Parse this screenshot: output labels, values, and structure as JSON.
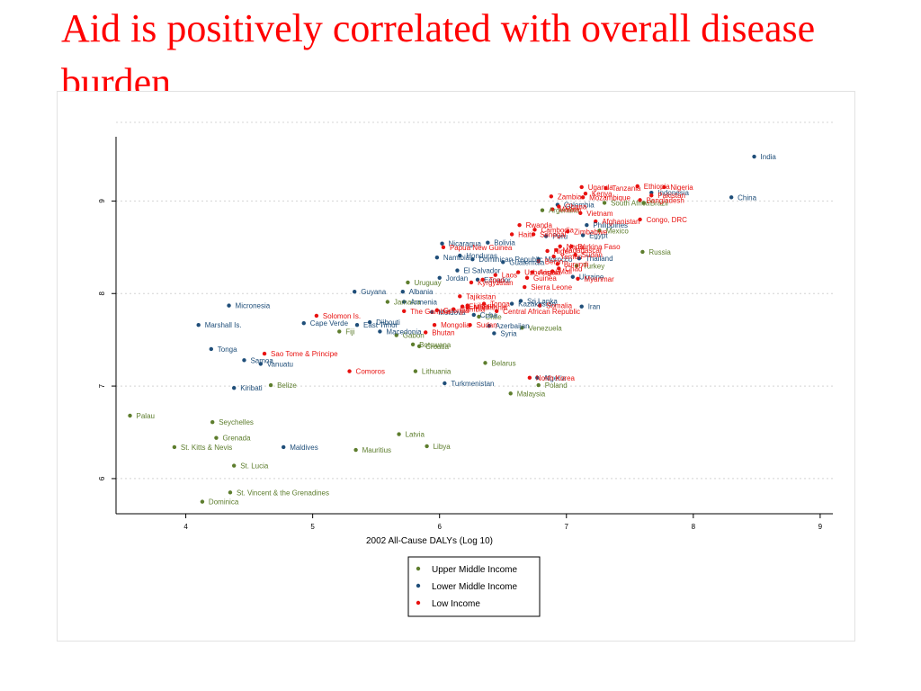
{
  "slide": {
    "title": "Aid is positively correlated with overall disease burden"
  },
  "chart_data": {
    "type": "scatter",
    "title": "",
    "xlabel": "2002 All-Cause DALYs (Log 10)",
    "ylabel": "",
    "xlim": [
      3.45,
      9.1
    ],
    "ylim": [
      5.62,
      9.85
    ],
    "xticks": [
      4,
      5,
      6,
      7,
      8,
      9
    ],
    "yticks": [
      6,
      7,
      8,
      9
    ],
    "grid": true,
    "legend_position": "bottom-center",
    "series": [
      {
        "name": "Upper Middle Income",
        "color": "#5d7d2d",
        "points": [
          {
            "label": "Palau",
            "x": 3.56,
            "y": 6.68
          },
          {
            "label": "Seychelles",
            "x": 4.21,
            "y": 6.61
          },
          {
            "label": "Grenada",
            "x": 4.24,
            "y": 6.44
          },
          {
            "label": "St. Kitts & Nevis",
            "x": 3.91,
            "y": 6.34
          },
          {
            "label": "St. Lucia",
            "x": 4.38,
            "y": 6.14
          },
          {
            "label": "St. Vincent & the Grenadines",
            "x": 4.35,
            "y": 5.85
          },
          {
            "label": "Dominica",
            "x": 4.13,
            "y": 5.75
          },
          {
            "label": "Belize",
            "x": 4.67,
            "y": 7.01
          },
          {
            "label": "Fiji",
            "x": 5.21,
            "y": 7.59
          },
          {
            "label": "Jamaica",
            "x": 5.59,
            "y": 7.91
          },
          {
            "label": "Uruguay",
            "x": 5.75,
            "y": 8.12
          },
          {
            "label": "Gabon",
            "x": 5.66,
            "y": 7.55
          },
          {
            "label": "Botswana",
            "x": 5.79,
            "y": 7.45
          },
          {
            "label": "Croatia",
            "x": 5.84,
            "y": 7.43
          },
          {
            "label": "Lithuania",
            "x": 5.81,
            "y": 7.16
          },
          {
            "label": "Latvia",
            "x": 5.68,
            "y": 6.48
          },
          {
            "label": "Libya",
            "x": 5.9,
            "y": 6.35
          },
          {
            "label": "Mauritius",
            "x": 5.34,
            "y": 6.31
          },
          {
            "label": "Belarus",
            "x": 6.36,
            "y": 7.25
          },
          {
            "label": "Malaysia",
            "x": 6.56,
            "y": 6.92
          },
          {
            "label": "Poland",
            "x": 6.78,
            "y": 7.01
          },
          {
            "label": "Chile",
            "x": 6.31,
            "y": 7.75
          },
          {
            "label": "Venezuela",
            "x": 6.65,
            "y": 7.63
          },
          {
            "label": "Russia",
            "x": 7.6,
            "y": 8.45
          },
          {
            "label": "South Africa",
            "x": 7.3,
            "y": 8.98
          },
          {
            "label": "Argentina",
            "x": 6.81,
            "y": 8.9
          },
          {
            "label": "Mexico",
            "x": 7.26,
            "y": 8.68
          },
          {
            "label": "Turkey",
            "x": 7.08,
            "y": 8.3
          },
          {
            "label": "Brazil",
            "x": 7.61,
            "y": 8.98
          }
        ]
      },
      {
        "name": "Lower Middle Income",
        "color": "#1f4e79",
        "points": [
          {
            "label": "India",
            "x": 8.48,
            "y": 9.48
          },
          {
            "label": "China",
            "x": 8.3,
            "y": 9.04
          },
          {
            "label": "Indonesia",
            "x": 7.67,
            "y": 9.09
          },
          {
            "label": "Philippines",
            "x": 7.16,
            "y": 8.74
          },
          {
            "label": "Egypt",
            "x": 7.13,
            "y": 8.63
          },
          {
            "label": "Colombia",
            "x": 6.93,
            "y": 8.96
          },
          {
            "label": "Iran",
            "x": 7.12,
            "y": 7.86
          },
          {
            "label": "Ukraine",
            "x": 7.05,
            "y": 8.18
          },
          {
            "label": "Thailand",
            "x": 7.1,
            "y": 8.38
          },
          {
            "label": "Peru",
            "x": 6.84,
            "y": 8.62
          },
          {
            "label": "Morocco",
            "x": 6.78,
            "y": 8.37
          },
          {
            "label": "Bolivia",
            "x": 6.38,
            "y": 8.55
          },
          {
            "label": "Nicaragua",
            "x": 6.02,
            "y": 8.54
          },
          {
            "label": "Honduras",
            "x": 6.16,
            "y": 8.41
          },
          {
            "label": "Namibia",
            "x": 5.98,
            "y": 8.39
          },
          {
            "label": "Dominican Republic",
            "x": 6.26,
            "y": 8.37
          },
          {
            "label": "El Salvador",
            "x": 6.14,
            "y": 8.25
          },
          {
            "label": "Guatemala",
            "x": 6.5,
            "y": 8.34
          },
          {
            "label": "Jordan",
            "x": 6.0,
            "y": 8.17
          },
          {
            "label": "Ecuador",
            "x": 6.3,
            "y": 8.15
          },
          {
            "label": "Sri Lanka",
            "x": 6.64,
            "y": 7.92
          },
          {
            "label": "Kazakhstan",
            "x": 6.57,
            "y": 7.89
          },
          {
            "label": "Algeria",
            "x": 6.77,
            "y": 7.09
          },
          {
            "label": "Turkmenistan",
            "x": 6.04,
            "y": 7.03
          },
          {
            "label": "Syria",
            "x": 6.43,
            "y": 7.57
          },
          {
            "label": "Azerbaijan",
            "x": 6.39,
            "y": 7.65
          },
          {
            "label": "Cuba",
            "x": 6.27,
            "y": 7.77
          },
          {
            "label": "Albania",
            "x": 5.71,
            "y": 8.02
          },
          {
            "label": "Guyana",
            "x": 5.33,
            "y": 8.02
          },
          {
            "label": "Armenia",
            "x": 5.72,
            "y": 7.91
          },
          {
            "label": "Macedonia",
            "x": 5.53,
            "y": 7.59
          },
          {
            "label": "East Timor",
            "x": 5.35,
            "y": 7.66
          },
          {
            "label": "Cape Verde",
            "x": 4.93,
            "y": 7.68
          },
          {
            "label": "Djibouti",
            "x": 5.45,
            "y": 7.69
          },
          {
            "label": "Micronesia",
            "x": 4.34,
            "y": 7.87
          },
          {
            "label": "Marshall Is.",
            "x": 4.1,
            "y": 7.66
          },
          {
            "label": "Tonga",
            "x": 4.2,
            "y": 7.4
          },
          {
            "label": "Samoa",
            "x": 4.46,
            "y": 7.28
          },
          {
            "label": "Vanuatu",
            "x": 4.59,
            "y": 7.24
          },
          {
            "label": "Kiribati",
            "x": 4.38,
            "y": 6.98
          },
          {
            "label": "Maldives",
            "x": 4.77,
            "y": 6.34
          },
          {
            "label": "Moldova",
            "x": 5.94,
            "y": 7.8
          }
        ]
      },
      {
        "name": "Low Income",
        "color": "#e8110f",
        "points": [
          {
            "label": "Ethiopia",
            "x": 7.56,
            "y": 9.16
          },
          {
            "label": "Nigeria",
            "x": 7.77,
            "y": 9.15
          },
          {
            "label": "Uganda",
            "x": 7.12,
            "y": 9.15
          },
          {
            "label": "Tanzania",
            "x": 7.31,
            "y": 9.14
          },
          {
            "label": "Kenya",
            "x": 7.15,
            "y": 9.08
          },
          {
            "label": "Pakistan",
            "x": 7.67,
            "y": 9.06
          },
          {
            "label": "Bangladesh",
            "x": 7.58,
            "y": 9.01
          },
          {
            "label": "Zambia",
            "x": 6.88,
            "y": 9.05
          },
          {
            "label": "Mozambique",
            "x": 7.13,
            "y": 9.04
          },
          {
            "label": "Ghana",
            "x": 6.94,
            "y": 8.94
          },
          {
            "label": "Malawi",
            "x": 6.89,
            "y": 8.91
          },
          {
            "label": "Vietnam",
            "x": 7.11,
            "y": 8.87
          },
          {
            "label": "Afghanistan",
            "x": 7.23,
            "y": 8.78
          },
          {
            "label": "Congo, DRC",
            "x": 7.58,
            "y": 8.8
          },
          {
            "label": "Rwanda",
            "x": 6.63,
            "y": 8.74
          },
          {
            "label": "Cambodia",
            "x": 6.75,
            "y": 8.69
          },
          {
            "label": "Zimbabwe",
            "x": 7.01,
            "y": 8.67
          },
          {
            "label": "Haiti",
            "x": 6.57,
            "y": 8.64
          },
          {
            "label": "Senegal",
            "x": 6.74,
            "y": 8.64
          },
          {
            "label": "Papua New Guinea",
            "x": 6.03,
            "y": 8.5
          },
          {
            "label": "Nepal",
            "x": 6.95,
            "y": 8.51
          },
          {
            "label": "Burkina Faso",
            "x": 7.04,
            "y": 8.51
          },
          {
            "label": "Madagascar",
            "x": 6.92,
            "y": 8.47
          },
          {
            "label": "Niger",
            "x": 6.85,
            "y": 8.46
          },
          {
            "label": "Sudan",
            "x": 7.07,
            "y": 8.42
          },
          {
            "label": "Yemen",
            "x": 6.9,
            "y": 8.4
          },
          {
            "label": "Benin",
            "x": 6.78,
            "y": 8.35
          },
          {
            "label": "Burundi",
            "x": 6.93,
            "y": 8.32
          },
          {
            "label": "Chad",
            "x": 6.94,
            "y": 8.27
          },
          {
            "label": "Mali",
            "x": 6.89,
            "y": 8.24
          },
          {
            "label": "Uzbekistan",
            "x": 6.62,
            "y": 8.23
          },
          {
            "label": "Angola",
            "x": 6.73,
            "y": 8.23
          },
          {
            "label": "Guinea",
            "x": 6.69,
            "y": 8.17
          },
          {
            "label": "Togo",
            "x": 6.34,
            "y": 8.15
          },
          {
            "label": "Laos",
            "x": 6.44,
            "y": 8.2
          },
          {
            "label": "Kyrgyzstan",
            "x": 6.25,
            "y": 8.12
          },
          {
            "label": "Sierra Leone",
            "x": 6.67,
            "y": 8.07
          },
          {
            "label": "Myanmar",
            "x": 7.09,
            "y": 8.16
          },
          {
            "label": "Tajikistan",
            "x": 6.16,
            "y": 7.97
          },
          {
            "label": "Liberia",
            "x": 6.22,
            "y": 7.87
          },
          {
            "label": "Eritrea",
            "x": 6.18,
            "y": 7.86
          },
          {
            "label": "Mauritania",
            "x": 6.22,
            "y": 7.85
          },
          {
            "label": "Gambia",
            "x": 6.11,
            "y": 7.83
          },
          {
            "label": "Central African Republic",
            "x": 6.45,
            "y": 7.81
          },
          {
            "label": "Somalia",
            "x": 6.79,
            "y": 7.87
          },
          {
            "label": "Georgia",
            "x": 5.98,
            "y": 7.82
          },
          {
            "label": "The Gambia",
            "x": 5.72,
            "y": 7.81
          },
          {
            "label": "Mongolia",
            "x": 5.96,
            "y": 7.66
          },
          {
            "label": "Bhutan",
            "x": 5.89,
            "y": 7.58
          },
          {
            "label": "Solomon Is.",
            "x": 5.03,
            "y": 7.76
          },
          {
            "label": "Sao Tome & Principe",
            "x": 4.62,
            "y": 7.35
          },
          {
            "label": "Comoros",
            "x": 5.29,
            "y": 7.16
          },
          {
            "label": "North Korea",
            "x": 6.71,
            "y": 7.09
          },
          {
            "label": "Tonga",
            "x": 6.35,
            "y": 7.89
          },
          {
            "label": "Sudan",
            "x": 6.24,
            "y": 7.66
          }
        ]
      }
    ]
  }
}
